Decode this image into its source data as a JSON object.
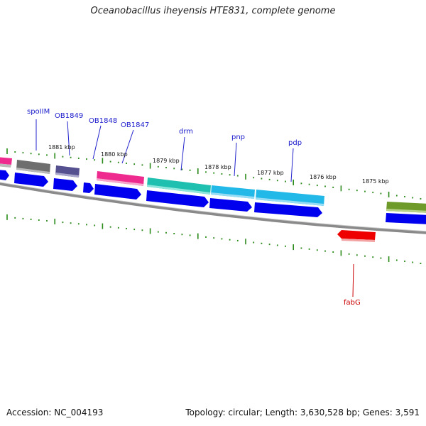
{
  "title": "Oceanobacillus iheyensis HTE831, complete genome",
  "footer": {
    "accession": "Accession: NC_004193",
    "topology": "Topology: circular; Length: 3,630,528 bp; Genes: 3,591"
  },
  "scale_labels": [
    "1881 kbp",
    "1880 kbp",
    "1879 kbp",
    "1878 kbp",
    "1877 kbp",
    "1876 kbp",
    "1875 kbp"
  ],
  "gene_labels": [
    "spoIIM",
    "OB1849",
    "OB1848",
    "OB1847",
    "drm",
    "pnp",
    "pdp",
    "fabG"
  ],
  "colors": {
    "backbone": "#888888",
    "tick": "#2a8a1a",
    "label_forward": "#1a1acc",
    "label_reverse": "#cc0000",
    "cds": "#0000ee",
    "gene_gray": "#6e6e6e",
    "gene_slate": "#55508f",
    "gene_magenta": "#ee2a8f",
    "gene_teal": "#20c0b0",
    "gene_cyan": "#22b8e8",
    "gene_olive": "#6e9a2a",
    "gene_red": "#ee0000"
  }
}
